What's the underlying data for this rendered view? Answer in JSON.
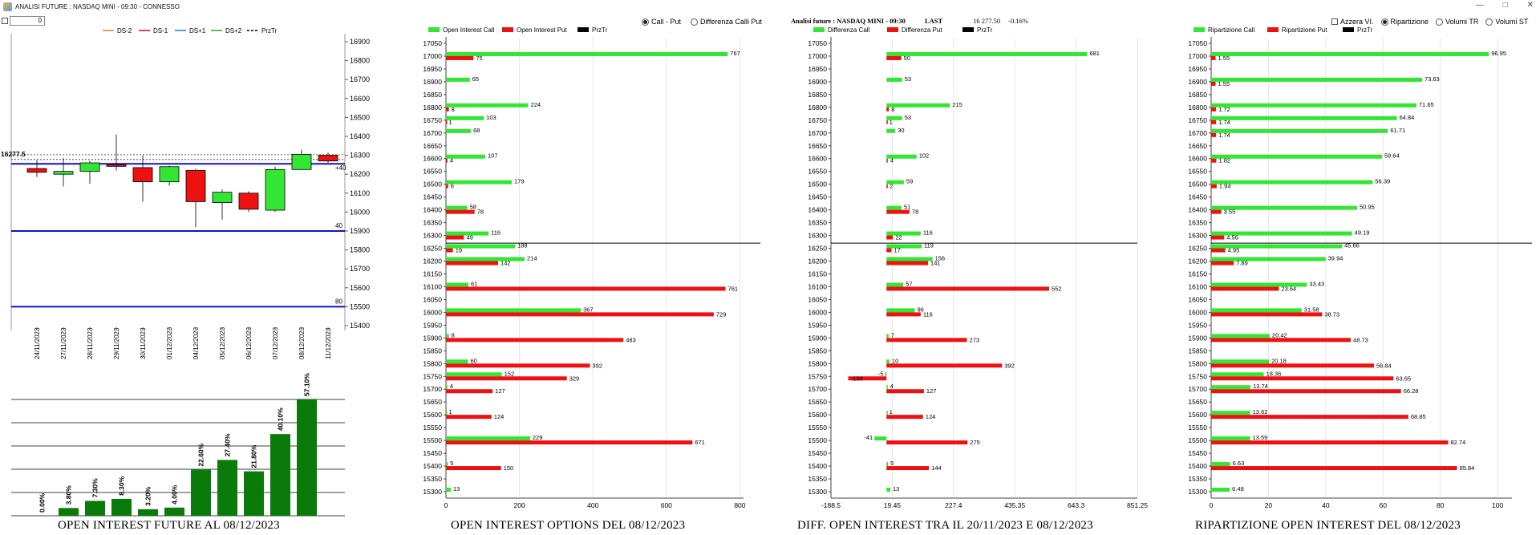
{
  "window": {
    "title": "ANALISI FUTURE : NASDAQ MINI - 09:30 - CONNESSO"
  },
  "controls": {
    "input_value": "0"
  },
  "panel2_options": {
    "opt1": "Call - Put",
    "opt2": "Differenza Calli Put"
  },
  "panel3_header": {
    "title": "Analisi future : NASDAQ MINI - 09:30",
    "last_label": "LAST",
    "last_value": "16 277.50",
    "change": "-0.16%"
  },
  "panel4_options": {
    "azzera": "Azzera VI.",
    "ripartizione": "Ripartizione",
    "volumi_tr": "Volumi TR",
    "volumi_st": "Volumi ST"
  },
  "titles": {
    "p1": "OPEN INTEREST FUTURE AL 08/12/2023",
    "p2": "OPEN INTEREST OPTIONS DEL 08/12/2023",
    "p3": "DIFF. OPEN INTEREST TRA IL 20/11/2023 E 08/12/2023",
    "p4": "RIPARTIZIONE OPEN INTEREST DEL 08/12/2023"
  },
  "colors": {
    "call": "#33e633",
    "put": "#ee1111",
    "pzt": "#000000",
    "bull": "#33e633",
    "bear": "#ee1111",
    "bar_green": "#0a7a0a",
    "level": "#1111cc"
  },
  "chart_data": [
    {
      "type": "candlestick",
      "legend": [
        "DS-2",
        "DS-1",
        "DS+1",
        "DS+2",
        "PrzTr"
      ],
      "ylim": [
        15400,
        16900
      ],
      "yticks": [
        15400,
        15500,
        15600,
        15700,
        15800,
        15900,
        16000,
        16100,
        16200,
        16300,
        16400,
        16500,
        16600,
        16700,
        16800,
        16900
      ],
      "price_label": "16277.5",
      "price": 16277.5,
      "levels": [
        {
          "y": 16255,
          "label": "+40"
        },
        {
          "y": 15900,
          "label": "40"
        },
        {
          "y": 15500,
          "label": "80"
        }
      ],
      "candles": [
        {
          "date": "24/11/2023",
          "o": 16230,
          "c": 16210,
          "h": 16275,
          "l": 16185
        },
        {
          "date": "27/11/2023",
          "o": 16200,
          "c": 16215,
          "h": 16285,
          "l": 16135
        },
        {
          "date": "28/11/2023",
          "o": 16215,
          "c": 16260,
          "h": 16270,
          "l": 16150
        },
        {
          "date": "29/11/2023",
          "o": 16250,
          "c": 16245,
          "h": 16410,
          "l": 16220
        },
        {
          "date": "30/11/2023",
          "o": 16235,
          "c": 16160,
          "h": 16300,
          "l": 16055
        },
        {
          "date": "01/12/2023",
          "o": 16160,
          "c": 16240,
          "h": 16245,
          "l": 16140
        },
        {
          "date": "04/12/2023",
          "o": 16220,
          "c": 16055,
          "h": 16230,
          "l": 15920
        },
        {
          "date": "05/12/2023",
          "o": 16050,
          "c": 16105,
          "h": 16120,
          "l": 15960
        },
        {
          "date": "06/12/2023",
          "o": 16100,
          "c": 16015,
          "h": 16110,
          "l": 16000
        },
        {
          "date": "07/12/2023",
          "o": 16010,
          "c": 16225,
          "h": 16240,
          "l": 16000
        },
        {
          "date": "08/12/2023",
          "o": 16225,
          "c": 16305,
          "h": 16330,
          "l": 16225
        },
        {
          "date": "11/12/2023",
          "o": 16300,
          "c": 16270,
          "h": 16315,
          "l": 16260
        }
      ]
    },
    {
      "type": "bar",
      "values": [
        0.0,
        3.8,
        7.3,
        8.3,
        3.2,
        4.0,
        22.6,
        27.4,
        21.8,
        40.1,
        57.1
      ],
      "labels": [
        "0.00%",
        "3.80%",
        "7.30%",
        "8.30%",
        "3.20%",
        "4.00%",
        "22.60%",
        "27.40%",
        "21.80%",
        "40.10%",
        "57.10%"
      ],
      "ylim": [
        0,
        100
      ]
    },
    {
      "type": "bar",
      "orientation": "horizontal",
      "legend": [
        "Open Interest Call",
        "Open Interest Put",
        "PrzTr"
      ],
      "categories": [
        "17050",
        "17000",
        "16950",
        "16900",
        "16850",
        "16800",
        "16750",
        "16700",
        "16650",
        "16600",
        "16550",
        "16500",
        "16450",
        "16400",
        "16350",
        "16300",
        "16250",
        "16200",
        "16150",
        "16100",
        "16050",
        "16000",
        "15950",
        "15900",
        "15850",
        "15800",
        "15750",
        "15700",
        "15650",
        "15600",
        "15550",
        "15500",
        "15450",
        "15400",
        "15350",
        "15300"
      ],
      "series": [
        {
          "name": "Open Interest Call",
          "values": [
            null,
            767,
            null,
            65,
            null,
            224,
            103,
            68,
            null,
            107,
            null,
            179,
            null,
            58,
            null,
            116,
            188,
            214,
            null,
            61,
            null,
            367,
            null,
            8,
            null,
            60,
            152,
            4,
            null,
            1,
            null,
            229,
            null,
            5,
            null,
            13
          ]
        },
        {
          "name": "Open Interest Put",
          "values": [
            null,
            75,
            null,
            null,
            null,
            8,
            1,
            null,
            null,
            4,
            null,
            6,
            null,
            78,
            null,
            49,
            19,
            142,
            null,
            761,
            null,
            729,
            null,
            483,
            null,
            392,
            329,
            127,
            null,
            124,
            null,
            671,
            null,
            150,
            null,
            null
          ]
        }
      ],
      "xticks": [
        0,
        200,
        400,
        600,
        800
      ],
      "xlim": [
        0,
        810
      ]
    },
    {
      "type": "bar",
      "orientation": "horizontal",
      "legend": [
        "Differenza Call",
        "Differenza Put",
        "PrzTr"
      ],
      "categories": [
        "17050",
        "17000",
        "16950",
        "16900",
        "16850",
        "16800",
        "16750",
        "16700",
        "16650",
        "16600",
        "16550",
        "16500",
        "16450",
        "16400",
        "16350",
        "16300",
        "16250",
        "16200",
        "16150",
        "16100",
        "16050",
        "16000",
        "15950",
        "15900",
        "15850",
        "15800",
        "15750",
        "15700",
        "15650",
        "15600",
        "15550",
        "15500",
        "15450",
        "15400",
        "15350",
        "15300"
      ],
      "series": [
        {
          "name": "Differenza Call",
          "values": [
            null,
            681,
            null,
            53,
            null,
            215,
            53,
            30,
            null,
            102,
            null,
            59,
            null,
            51,
            null,
            116,
            119,
            156,
            null,
            57,
            null,
            96,
            null,
            7,
            null,
            10,
            -5,
            4,
            null,
            1,
            null,
            -41,
            null,
            5,
            null,
            13
          ]
        },
        {
          "name": "Differenza Put",
          "values": [
            null,
            50,
            null,
            null,
            null,
            8,
            1,
            null,
            null,
            4,
            null,
            2,
            null,
            78,
            null,
            22,
            17,
            141,
            null,
            552,
            null,
            116,
            null,
            273,
            null,
            392,
            -130,
            127,
            null,
            124,
            null,
            275,
            null,
            144,
            null,
            null
          ]
        }
      ],
      "xticks": [
        -188.5,
        19.45,
        227.4,
        435.35,
        643.3,
        851.25
      ],
      "xtick_labels": [
        "-188.5",
        "19.45",
        "227.4",
        "435.35",
        "643.3",
        "851.25"
      ],
      "xlim": [
        -188.5,
        851.25
      ]
    },
    {
      "type": "bar",
      "orientation": "horizontal",
      "legend": [
        "Ripartizione Call",
        "Ripartizione Put",
        "PrzTr"
      ],
      "categories": [
        "17050",
        "17000",
        "16950",
        "16900",
        "16850",
        "16800",
        "16750",
        "16700",
        "16650",
        "16600",
        "16550",
        "16500",
        "16450",
        "16400",
        "16350",
        "16300",
        "16250",
        "16200",
        "16150",
        "16100",
        "16050",
        "16000",
        "15950",
        "15900",
        "15850",
        "15800",
        "15750",
        "15700",
        "15650",
        "15600",
        "15550",
        "15500",
        "15450",
        "15400",
        "15350",
        "15300"
      ],
      "series": [
        {
          "name": "Ripartizione Call",
          "values": [
            null,
            96.95,
            null,
            73.63,
            null,
            71.65,
            64.84,
            61.71,
            null,
            59.64,
            null,
            56.39,
            null,
            50.95,
            null,
            49.19,
            45.66,
            39.94,
            null,
            33.43,
            null,
            31.58,
            null,
            20.42,
            null,
            20.18,
            18.36,
            13.74,
            null,
            13.62,
            null,
            13.59,
            null,
            6.63,
            null,
            6.48
          ]
        },
        {
          "name": "Ripartizione Put",
          "values": [
            null,
            1.55,
            null,
            1.55,
            null,
            1.72,
            1.74,
            1.74,
            null,
            1.82,
            null,
            1.94,
            null,
            3.55,
            null,
            4.56,
            4.95,
            7.89,
            null,
            23.64,
            null,
            38.73,
            null,
            48.73,
            null,
            56.84,
            63.65,
            66.28,
            null,
            68.85,
            null,
            82.74,
            null,
            85.84,
            null,
            null
          ]
        }
      ],
      "xticks": [
        0,
        20,
        40,
        60,
        80,
        100
      ],
      "xlim": [
        0,
        105
      ]
    }
  ]
}
